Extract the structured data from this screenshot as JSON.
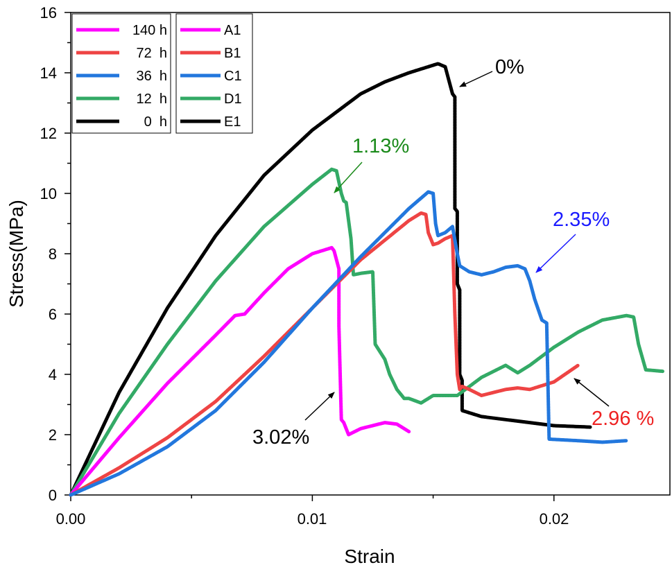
{
  "chart_data": {
    "type": "line",
    "title": "",
    "xlabel": "Strain",
    "ylabel": "Stress(MPa)",
    "xlim": [
      0.0,
      0.0248
    ],
    "ylim": [
      0,
      16
    ],
    "x_ticks": [
      0.0,
      0.01,
      0.02
    ],
    "x_tick_labels": [
      "0.00",
      "0.01",
      "0.02"
    ],
    "y_ticks": [
      0,
      2,
      4,
      6,
      8,
      10,
      12,
      14,
      16
    ],
    "y_tick_labels": [
      "0",
      "2",
      "4",
      "6",
      "8",
      "10",
      "12",
      "14",
      "16"
    ],
    "grid": false,
    "legend_left": {
      "placement": "top-left",
      "entries": [
        {
          "label": "140 h",
          "color": "#ff00ff"
        },
        {
          "label": "72  h",
          "color": "#ee4444"
        },
        {
          "label": "36  h",
          "color": "#2277dd"
        },
        {
          "label": "12  h",
          "color": "#33aa66"
        },
        {
          "label": "0  h",
          "color": "#000000"
        }
      ]
    },
    "legend_right": {
      "placement": "top-left",
      "entries": [
        {
          "label": "A1",
          "color": "#ff00ff"
        },
        {
          "label": "B1",
          "color": "#ee4444"
        },
        {
          "label": "C1",
          "color": "#2277dd"
        },
        {
          "label": "D1",
          "color": "#33aa66"
        },
        {
          "label": "E1",
          "color": "#000000"
        }
      ]
    },
    "series": [
      {
        "name": "0 h",
        "color": "#000000",
        "x": [
          0,
          0.002,
          0.004,
          0.006,
          0.008,
          0.01,
          0.012,
          0.013,
          0.014,
          0.0152,
          0.0155,
          0.0157,
          0.0158,
          0.0159,
          0.0159,
          0.016,
          0.016,
          0.0161,
          0.0161,
          0.0162,
          0.0162,
          0.017,
          0.018,
          0.019,
          0.02,
          0.0215
        ],
        "y": [
          0,
          3.4,
          6.2,
          8.6,
          10.6,
          12.1,
          13.3,
          13.7,
          14.0,
          14.3,
          14.2,
          13.6,
          13.3,
          13.2,
          9.5,
          9.4,
          7.0,
          6.8,
          4.0,
          3.8,
          2.8,
          2.6,
          2.5,
          2.4,
          2.3,
          2.25
        ]
      },
      {
        "name": "12 h",
        "color": "#33aa66",
        "x": [
          0,
          0.002,
          0.004,
          0.006,
          0.008,
          0.01,
          0.0108,
          0.011,
          0.0112,
          0.0113,
          0.0114,
          0.0116,
          0.0117,
          0.012,
          0.0125,
          0.0126,
          0.013,
          0.0132,
          0.0135,
          0.0138,
          0.014,
          0.0145,
          0.015,
          0.016,
          0.017,
          0.018,
          0.0185,
          0.019,
          0.02,
          0.021,
          0.022,
          0.023,
          0.0233,
          0.0235,
          0.0238,
          0.0245
        ],
        "y": [
          0,
          2.7,
          5.0,
          7.1,
          8.9,
          10.3,
          10.8,
          10.75,
          10.0,
          9.75,
          9.7,
          8.5,
          7.3,
          7.35,
          7.4,
          5.0,
          4.5,
          4.0,
          3.5,
          3.2,
          3.2,
          3.05,
          3.3,
          3.3,
          3.9,
          4.3,
          4.05,
          4.3,
          4.9,
          5.4,
          5.8,
          5.95,
          5.9,
          5.0,
          4.15,
          4.1
        ]
      },
      {
        "name": "140 h",
        "color": "#ff00ff",
        "x": [
          0,
          0.002,
          0.004,
          0.006,
          0.0068,
          0.0072,
          0.008,
          0.009,
          0.01,
          0.0108,
          0.0109,
          0.0111,
          0.0111,
          0.0112,
          0.0113,
          0.0115,
          0.012,
          0.013,
          0.0135,
          0.014
        ],
        "y": [
          0,
          1.9,
          3.7,
          5.3,
          5.95,
          6.0,
          6.7,
          7.5,
          8.0,
          8.2,
          8.1,
          7.5,
          5.6,
          2.5,
          2.4,
          2.0,
          2.2,
          2.4,
          2.35,
          2.1
        ]
      },
      {
        "name": "72 h",
        "color": "#ee4444",
        "x": [
          0,
          0.002,
          0.004,
          0.006,
          0.008,
          0.01,
          0.012,
          0.014,
          0.0145,
          0.0147,
          0.0148,
          0.015,
          0.0152,
          0.0155,
          0.0158,
          0.0159,
          0.016,
          0.0161,
          0.0162,
          0.0165,
          0.017,
          0.0175,
          0.018,
          0.0185,
          0.019,
          0.02,
          0.021
        ],
        "y": [
          0,
          0.9,
          1.9,
          3.1,
          4.6,
          6.2,
          7.8,
          9.1,
          9.35,
          9.3,
          8.7,
          8.3,
          8.35,
          8.5,
          8.6,
          6.0,
          4.0,
          3.5,
          3.6,
          3.5,
          3.3,
          3.4,
          3.5,
          3.55,
          3.5,
          3.75,
          4.3
        ]
      },
      {
        "name": "36 h",
        "color": "#2277dd",
        "x": [
          0,
          0.002,
          0.004,
          0.006,
          0.008,
          0.01,
          0.012,
          0.014,
          0.0148,
          0.015,
          0.0151,
          0.0152,
          0.0155,
          0.0158,
          0.016,
          0.0161,
          0.0165,
          0.017,
          0.0175,
          0.018,
          0.0185,
          0.0188,
          0.019,
          0.0192,
          0.0195,
          0.0197,
          0.0198,
          0.021,
          0.022,
          0.023
        ],
        "y": [
          0,
          0.7,
          1.6,
          2.8,
          4.4,
          6.2,
          7.9,
          9.5,
          10.05,
          10.0,
          9.0,
          8.6,
          8.7,
          8.9,
          8.0,
          7.6,
          7.4,
          7.3,
          7.4,
          7.55,
          7.6,
          7.5,
          7.1,
          6.5,
          5.8,
          5.7,
          1.85,
          1.8,
          1.75,
          1.8
        ]
      }
    ],
    "annotations": [
      {
        "text": "0%",
        "color": "#000000"
      },
      {
        "text": "1.13%",
        "color": "#1a8a1a"
      },
      {
        "text": "2.35%",
        "color": "#1a1aff"
      },
      {
        "text": "3.02%",
        "color": "#000000"
      },
      {
        "text": "2.96 %",
        "color": "#ee2222"
      }
    ]
  }
}
